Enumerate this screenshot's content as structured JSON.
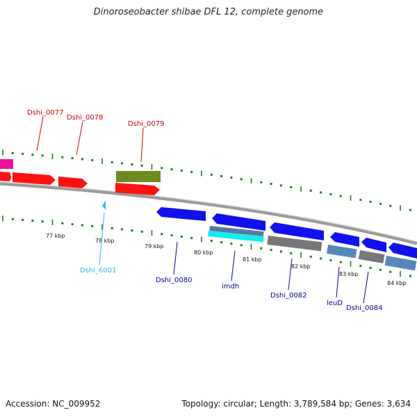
{
  "title": "Dinoroseobacter shibae DFL 12, complete genome",
  "footer": {
    "accession": "Accession: NC_009952",
    "summary": "Topology: circular; Length: 3,789,584 bp; Genes: 3,634"
  },
  "colors": {
    "forward_label": "#cc0000",
    "reverse_label": "#000099",
    "rna_label": "#33bbdd",
    "tick": "#1a7a1a",
    "backbone": "#888888"
  },
  "forward_genes": [
    {
      "label": "",
      "color": "#ee1199"
    },
    {
      "label": "",
      "color": "#ff1111"
    },
    {
      "label": "Dshi_0077",
      "color": "#ff1111"
    },
    {
      "label": "Dshi_0078",
      "color": "#ff1111"
    },
    {
      "label": "Dshi_0079",
      "color": "#ff1111"
    },
    {
      "label": "",
      "color": "#668822"
    }
  ],
  "reverse_genes": [
    {
      "label": "Dshi_6001",
      "color": "#22ccee"
    },
    {
      "label": "Dshi_0080",
      "color": "#1111ee"
    },
    {
      "label": "imdh",
      "color": "#1111ee"
    },
    {
      "label": "Dshi_0082",
      "color": "#1111ee"
    },
    {
      "label": "leuD",
      "color": "#1111ee"
    },
    {
      "label": "Dshi_0084",
      "color": "#1111ee"
    }
  ],
  "ticks": [
    "77 kbp",
    "78 kbp",
    "79 kbp",
    "80 kbp",
    "81 kbp",
    "82 kbp",
    "83 kbp",
    "84 kbp"
  ]
}
